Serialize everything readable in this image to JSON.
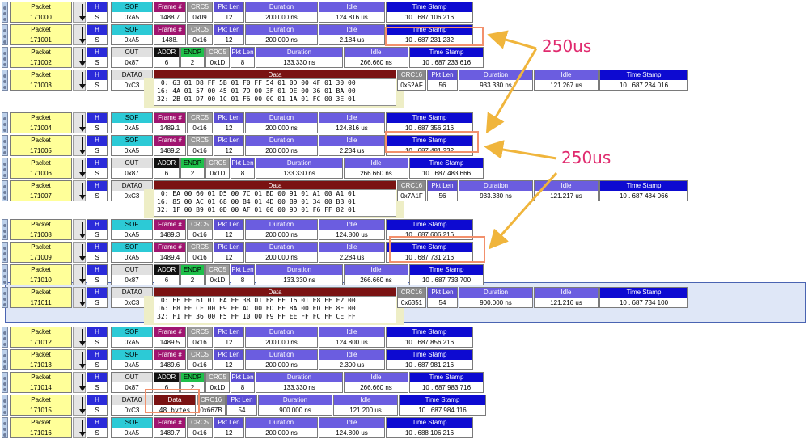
{
  "headers": {
    "packet": "Packet",
    "h": "H",
    "sof": "SOF",
    "frame": "Frame #",
    "crc5": "CRC5",
    "pkt_len": "Pkt Len",
    "duration": "Duration",
    "idle": "Idle",
    "timestamp": "Time Stamp",
    "out": "OUT",
    "addr": "ADDR",
    "endp": "ENDP",
    "data0": "DATA0",
    "data": "Data",
    "crc16": "CRC16",
    "h_value": "S"
  },
  "rows": [
    {
      "kind": "sof",
      "packet": "171000",
      "pid": "0xA5",
      "frame": "1488.7",
      "crc": "0x09",
      "len": "12",
      "duration": "200.000 ns",
      "idle": "124.816 us",
      "ts": "10 . 687 106 216"
    },
    {
      "kind": "sof",
      "packet": "171001",
      "pid": "0xA5",
      "frame": "1488.",
      "crc": "0x16",
      "len": "12",
      "duration": "200.000 ns",
      "idle": "2.184 us",
      "ts": "10 . 687 231 232"
    },
    {
      "kind": "out",
      "packet": "171002",
      "pid": "0x87",
      "addr": "6",
      "endp": "2",
      "crc": "0x1D",
      "len": "8",
      "duration": "133.330 ns",
      "idle": "266.660 ns",
      "ts": "10 . 687 233 616"
    },
    {
      "kind": "data",
      "packet": "171003",
      "pid": "0xC3",
      "crc16": "0x52AF",
      "len": "56",
      "duration": "933.330 ns",
      "idle": "121.267 us",
      "ts": "10 . 687 234 016",
      "lines": [
        " 0: 63 01 D8 FF 5B 01 F0 FF 54 01 0D 00 4F 01 30 00",
        "16: 4A 01 57 00 45 01 7D 00 3F 01 9E 00 36 01 BA 00",
        "32: 2B 01 D7 00 1C 01 F6 00 0C 01 1A 01 FC 00 3E 01"
      ]
    },
    {
      "kind": "sof",
      "packet": "171004",
      "pid": "0xA5",
      "frame": "1489.1",
      "crc": "0x16",
      "len": "12",
      "duration": "200.000 ns",
      "idle": "124.816 us",
      "ts": "10 . 687 356 216"
    },
    {
      "kind": "sof",
      "packet": "171005",
      "pid": "0xA5",
      "frame": "1489.2",
      "crc": "0x16",
      "len": "12",
      "duration": "200.000 ns",
      "idle": "2.234 us",
      "ts": "10 . 687 481 232"
    },
    {
      "kind": "out",
      "packet": "171006",
      "pid": "0x87",
      "addr": "6",
      "endp": "2",
      "crc": "0x1D",
      "len": "8",
      "duration": "133.330 ns",
      "idle": "266.660 ns",
      "ts": "10 . 687 483 666"
    },
    {
      "kind": "data",
      "packet": "171007",
      "pid": "0xC3",
      "crc16": "0x7A1F",
      "len": "56",
      "duration": "933.330 ns",
      "idle": "121.217 us",
      "ts": "10 . 687 484 066",
      "lines": [
        " 0: EA 00 60 01 D5 00 7C 01 BD 00 91 01 A1 00 A1 01",
        "16: 85 00 AC 01 68 00 B4 01 4D 00 B9 01 34 00 BB 01",
        "32: 1F 00 B9 01 0D 00 AF 01 00 00 9D 01 F6 FF 82 01"
      ]
    },
    {
      "kind": "sof",
      "packet": "171008",
      "pid": "0xA5",
      "frame": "1489.3",
      "crc": "0x16",
      "len": "12",
      "duration": "200.000 ns",
      "idle": "124.800 us",
      "ts": "10 . 687 606 216"
    },
    {
      "kind": "sof",
      "packet": "171009",
      "pid": "0xA5",
      "frame": "1489.4",
      "crc": "0x16",
      "len": "12",
      "duration": "200.000 ns",
      "idle": "2.284 us",
      "ts": "10 . 687 731 216"
    },
    {
      "kind": "out",
      "packet": "171010",
      "pid": "0x87",
      "addr": "6",
      "endp": "2",
      "crc": "0x1D",
      "len": "8",
      "duration": "133.330 ns",
      "idle": "266.660 ns",
      "ts": "10 . 687 733 700"
    },
    {
      "kind": "data",
      "packet": "171011",
      "pid": "0xC3",
      "crc16": "0x6351",
      "len": "54",
      "duration": "900.000 ns",
      "idle": "121.216 us",
      "ts": "10 . 687 734 100",
      "lines": [
        " 0: EF FF 61 01 EA FF 3B 01 E8 FF 16 01 E8 FF F2 00",
        "16: E8 FF CF 00 E9 FF AC 00 ED FF 8A 00 ED FF 8E 00",
        "32: F1 FF 36 00 F5 FF 10 00 F9 FF EE FF FC FF CE FF"
      ]
    },
    {
      "kind": "sof",
      "packet": "171012",
      "pid": "0xA5",
      "frame": "1489.5",
      "crc": "0x16",
      "len": "12",
      "duration": "200.000 ns",
      "idle": "124.800 us",
      "ts": "10 . 687 856 216"
    },
    {
      "kind": "sof",
      "packet": "171013",
      "pid": "0xA5",
      "frame": "1489.6",
      "crc": "0x16",
      "len": "12",
      "duration": "200.000 ns",
      "idle": "2.300 us",
      "ts": "10 . 687 981 216"
    },
    {
      "kind": "out",
      "packet": "171014",
      "pid": "0x87",
      "addr": "6",
      "endp": "2",
      "crc": "0x1D",
      "len": "8",
      "duration": "133.330 ns",
      "idle": "266.660 ns",
      "ts": "10 . 687 983 716"
    },
    {
      "kind": "data_small",
      "packet": "171015",
      "pid": "0xC3",
      "bytes": "48 bytes",
      "crc16": "0x667B",
      "len": "54",
      "duration": "900.000 ns",
      "idle": "121.200 us",
      "ts": "10 . 687 984 116"
    },
    {
      "kind": "sof",
      "packet": "171016",
      "pid": "0xA5",
      "frame": "1489.7",
      "crc": "0x16",
      "len": "12",
      "duration": "200.000 ns",
      "idle": "124.800 us",
      "ts": "10 . 688 106 216"
    }
  ],
  "annotations": {
    "label_1": "250us",
    "label_2": "250us",
    "color": "#f2906c",
    "label_color": "#e02a6e",
    "arrow_color": "#f0b53c"
  },
  "colors": {
    "packet_bg": "#ffff99",
    "sof_bg": "#2ccad6",
    "frame_bg": "#a01570",
    "crc5_bg": "#9a9a9a",
    "pktlen_bg": "#5d4fd4",
    "duration_bg": "#6b5de0",
    "idle_bg": "#6b5de0",
    "ts_bg": "#0d0ad1",
    "out_bg": "#e0e0e0",
    "addr_bg": "#111111",
    "endp_bg": "#1fbf4a",
    "data0_bg": "#e0e0e0",
    "data_bg": "#7a1212",
    "crc16_bg": "#8a8a8a"
  }
}
